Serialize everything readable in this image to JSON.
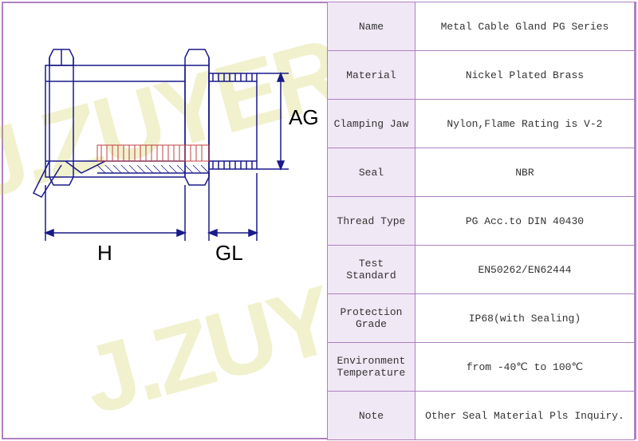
{
  "watermark": "J.ZUYER",
  "diagram": {
    "labels": {
      "AG": "AG",
      "H": "H",
      "GL": "GL"
    },
    "stroke_color": "#1a1a8a",
    "stroke_width": 1.5,
    "hatch_color": "#c04040"
  },
  "table": {
    "border_color": "#b080c0",
    "label_bg": "#f0e8f5",
    "value_bg": "#ffffff",
    "font_size": 13,
    "rows": [
      {
        "label": "Name",
        "value": "Metal Cable Gland PG Series"
      },
      {
        "label": "Material",
        "value": "Nickel Plated Brass"
      },
      {
        "label": "Clamping Jaw",
        "value": "Nylon,Flame Rating is V-2"
      },
      {
        "label": "Seal",
        "value": "NBR"
      },
      {
        "label": "Thread Type",
        "value": "PG Acc.to DIN 40430"
      },
      {
        "label": "Test Standard",
        "value": "EN50262/EN62444"
      },
      {
        "label": "Protection Grade",
        "value": "IP68(with Sealing)"
      },
      {
        "label": "Environment Temperature",
        "value": "from -40℃ to 100℃"
      },
      {
        "label": "Note",
        "value": "Other Seal Material Pls Inquiry."
      }
    ]
  }
}
